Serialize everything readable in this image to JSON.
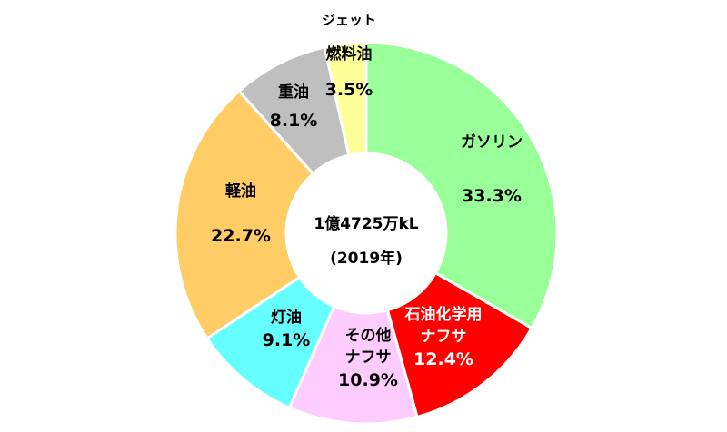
{
  "chart_data": {
    "type": "pie",
    "variant": "donut",
    "title": "",
    "center_label": [
      "1億4725万kL",
      "(2019年)"
    ],
    "slices": [
      {
        "label": [
          "ガソリン"
        ],
        "value": 33.3,
        "value_label": "33.3%",
        "color": "#99ff99",
        "text_color": "#000000"
      },
      {
        "label": [
          "石油化学用",
          "ナフサ"
        ],
        "value": 12.4,
        "value_label": "12.4%",
        "color": "#ff0000",
        "text_color": "#ffffff"
      },
      {
        "label": [
          "その他",
          "ナフサ"
        ],
        "value": 10.9,
        "value_label": "10.9%",
        "color": "#ffccff",
        "text_color": "#000000"
      },
      {
        "label": [
          "灯油"
        ],
        "value": 9.1,
        "value_label": "9.1%",
        "color": "#66ffff",
        "text_color": "#000000"
      },
      {
        "label": [
          "軽油"
        ],
        "value": 22.7,
        "value_label": "22.7%",
        "color": "#ffcc66",
        "text_color": "#000000"
      },
      {
        "label": [
          "重油"
        ],
        "value": 8.1,
        "value_label": "8.1%",
        "color": "#bfbfbf",
        "text_color": "#000000"
      },
      {
        "label": [
          "ジェット",
          "燃料油"
        ],
        "value": 3.5,
        "value_label": "3.5%",
        "color": "#ffff99",
        "text_color": "#000000"
      }
    ]
  }
}
